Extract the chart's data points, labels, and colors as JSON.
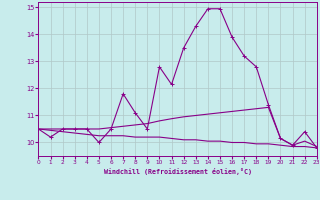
{
  "xlabel": "Windchill (Refroidissement éolien,°C)",
  "background_color": "#c8ecec",
  "grid_color": "#b0c8c8",
  "line_color": "#880088",
  "xlim": [
    0,
    23
  ],
  "ylim": [
    9.5,
    15.2
  ],
  "yticks": [
    10,
    11,
    12,
    13,
    14,
    15
  ],
  "xticks": [
    0,
    1,
    2,
    3,
    4,
    5,
    6,
    7,
    8,
    9,
    10,
    11,
    12,
    13,
    14,
    15,
    16,
    17,
    18,
    19,
    20,
    21,
    22,
    23
  ],
  "series1_x": [
    0,
    1,
    2,
    3,
    4,
    5,
    6,
    7,
    8,
    9,
    10,
    11,
    12,
    13,
    14,
    15,
    16,
    17,
    18,
    19,
    20,
    21,
    22,
    23
  ],
  "series1_y": [
    10.5,
    10.2,
    10.5,
    10.5,
    10.5,
    10.0,
    10.5,
    11.8,
    11.1,
    10.5,
    12.8,
    12.15,
    13.5,
    14.3,
    14.95,
    14.95,
    13.9,
    13.2,
    12.8,
    11.4,
    10.15,
    9.9,
    10.4,
    9.8
  ],
  "series2_x": [
    0,
    1,
    2,
    3,
    4,
    5,
    6,
    7,
    8,
    9,
    10,
    11,
    12,
    13,
    14,
    15,
    16,
    17,
    18,
    19,
    20,
    21,
    22,
    23
  ],
  "series2_y": [
    10.5,
    10.5,
    10.5,
    10.5,
    10.5,
    10.5,
    10.55,
    10.6,
    10.65,
    10.7,
    10.8,
    10.88,
    10.95,
    11.0,
    11.05,
    11.1,
    11.15,
    11.2,
    11.25,
    11.3,
    10.15,
    9.9,
    10.05,
    9.85
  ],
  "series3_x": [
    0,
    1,
    2,
    3,
    4,
    5,
    6,
    7,
    8,
    9,
    10,
    11,
    12,
    13,
    14,
    15,
    16,
    17,
    18,
    19,
    20,
    21,
    22,
    23
  ],
  "series3_y": [
    10.5,
    10.45,
    10.4,
    10.35,
    10.3,
    10.25,
    10.25,
    10.25,
    10.2,
    10.2,
    10.2,
    10.15,
    10.1,
    10.1,
    10.05,
    10.05,
    10.0,
    10.0,
    9.95,
    9.95,
    9.9,
    9.85,
    9.85,
    9.8
  ]
}
